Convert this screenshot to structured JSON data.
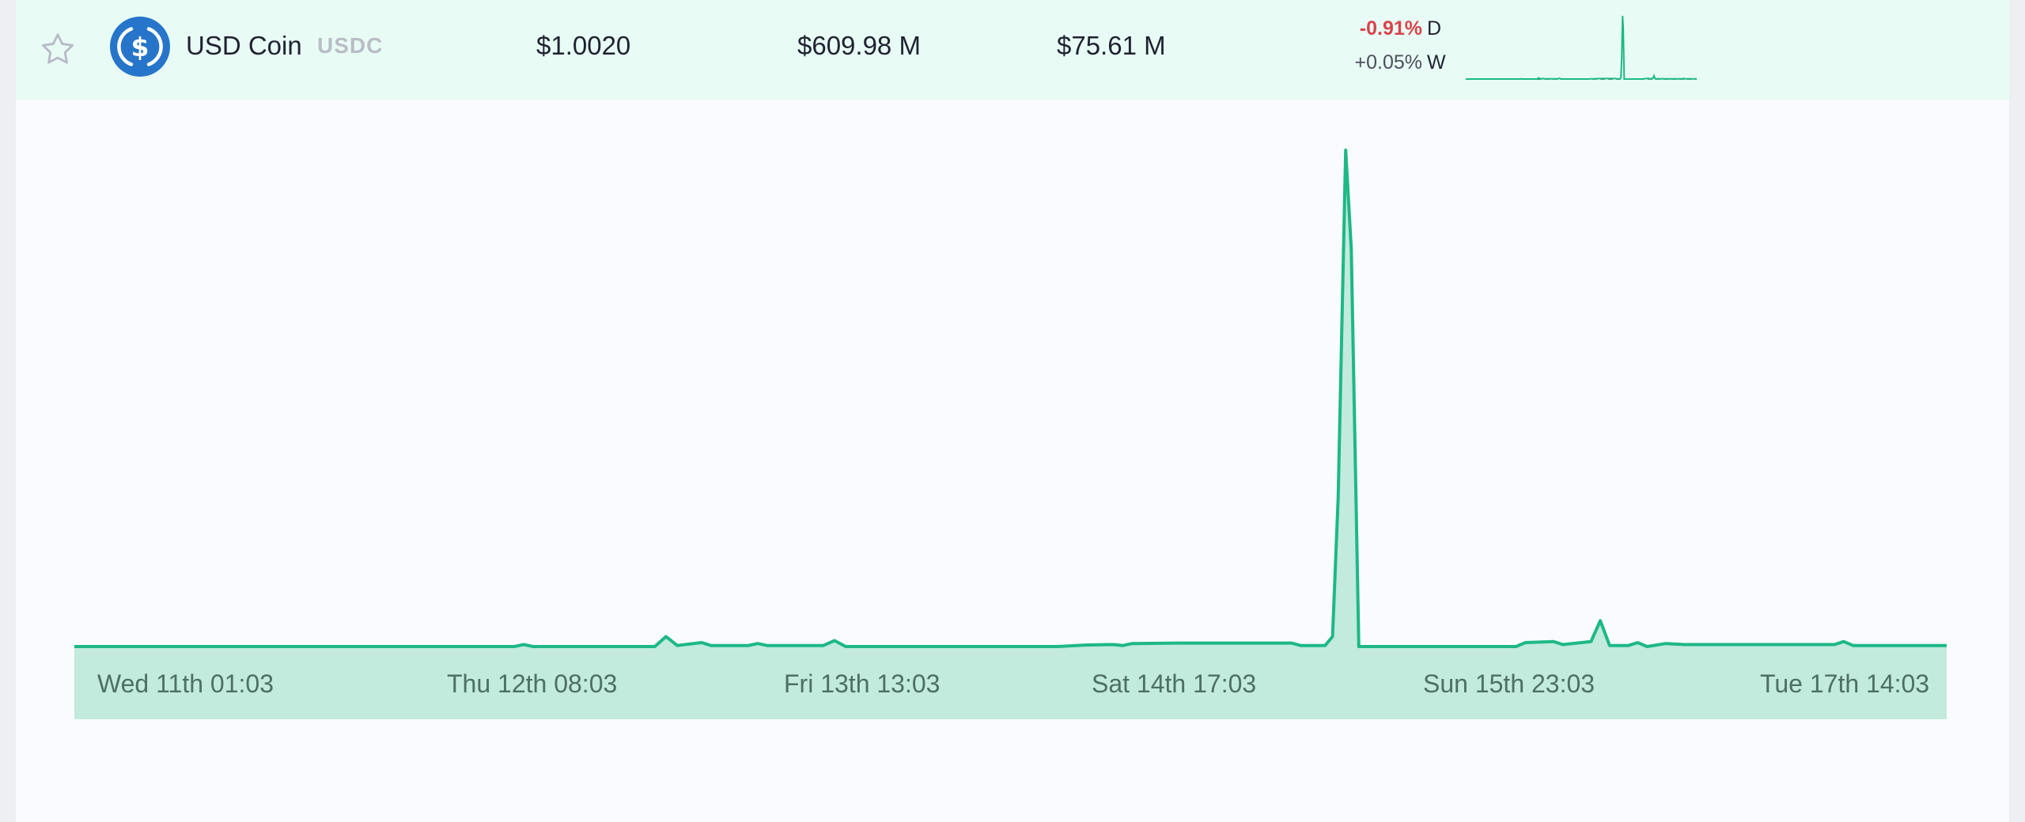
{
  "coin": {
    "name": "USD Coin",
    "symbol": "USDC",
    "price": "$1.0020",
    "market_cap": "$609.98 M",
    "volume": "$75.61 M",
    "change_day": "-0.91%",
    "change_day_label": "D",
    "change_week": "+0.05%",
    "change_week_label": "W",
    "icon": "usdc-dollar-circle-icon",
    "favorite_icon": "star-outline-icon"
  },
  "colors": {
    "accent": "#1db886",
    "accent_fill": "#c2eadd",
    "row_bg": "#e8fcf5",
    "negative": "#d9434b",
    "coin_blue": "#2775ca"
  },
  "chart_data": {
    "type": "line",
    "ylim": [
      0,
      1
    ],
    "grid": false,
    "x_tick_labels": [
      "Wed 11th 01:03",
      "Thu 12th 08:03",
      "Fri 13th 13:03",
      "Sat 14th 17:03",
      "Sun 15th 23:03",
      "Tue 17th 14:03"
    ],
    "series": [
      {
        "values": [
          [
            0.0,
            0.0
          ],
          [
            0.235,
            0.0
          ],
          [
            0.24,
            0.004
          ],
          [
            0.245,
            0.0
          ],
          [
            0.31,
            0.0
          ],
          [
            0.316,
            0.02
          ],
          [
            0.322,
            0.002
          ],
          [
            0.335,
            0.008
          ],
          [
            0.34,
            0.002
          ],
          [
            0.36,
            0.002
          ],
          [
            0.365,
            0.006
          ],
          [
            0.37,
            0.002
          ],
          [
            0.4,
            0.002
          ],
          [
            0.406,
            0.012
          ],
          [
            0.412,
            0.0
          ],
          [
            0.48,
            0.0
          ],
          [
            0.525,
            0.0
          ],
          [
            0.54,
            0.003
          ],
          [
            0.555,
            0.004
          ],
          [
            0.56,
            0.002
          ],
          [
            0.565,
            0.006
          ],
          [
            0.59,
            0.007
          ],
          [
            0.65,
            0.007
          ],
          [
            0.655,
            0.002
          ],
          [
            0.668,
            0.002
          ],
          [
            0.672,
            0.02
          ],
          [
            0.675,
            0.3
          ],
          [
            0.679,
            1.0
          ],
          [
            0.682,
            0.8
          ],
          [
            0.686,
            0.0
          ],
          [
            0.77,
            0.0
          ],
          [
            0.775,
            0.008
          ],
          [
            0.79,
            0.01
          ],
          [
            0.795,
            0.004
          ],
          [
            0.81,
            0.01
          ],
          [
            0.815,
            0.052
          ],
          [
            0.82,
            0.002
          ],
          [
            0.83,
            0.002
          ],
          [
            0.835,
            0.008
          ],
          [
            0.84,
            0.0
          ],
          [
            0.85,
            0.006
          ],
          [
            0.86,
            0.004
          ],
          [
            0.94,
            0.004
          ],
          [
            0.945,
            0.01
          ],
          [
            0.95,
            0.002
          ],
          [
            1.0,
            0.002
          ]
        ]
      }
    ]
  }
}
